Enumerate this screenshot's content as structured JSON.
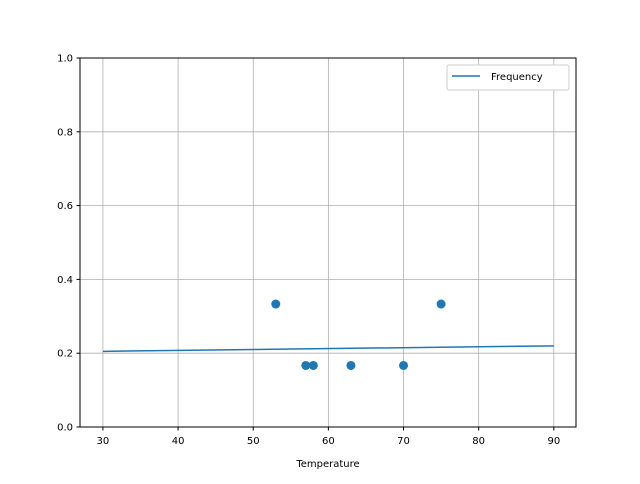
{
  "chart_data": {
    "type": "scatter",
    "title": "",
    "xlabel": "Temperature",
    "ylabel": "",
    "xlim": [
      26.95,
      92.95
    ],
    "ylim": [
      0,
      1
    ],
    "xticks": [
      30,
      40,
      50,
      60,
      70,
      80,
      90
    ],
    "yticks": [
      0.0,
      0.2,
      0.4,
      0.6,
      0.8,
      1.0
    ],
    "xtick_labels": [
      "30",
      "40",
      "50",
      "60",
      "70",
      "80",
      "90"
    ],
    "ytick_labels": [
      "0.0",
      "0.2",
      "0.4",
      "0.6",
      "0.8",
      "1.0"
    ],
    "grid": true,
    "legend_position": "top-right",
    "color": "#1f77b4",
    "series": [
      {
        "name": "Frequency",
        "kind": "line",
        "x": [
          30,
          90
        ],
        "y": [
          0.205,
          0.22
        ]
      },
      {
        "kind": "scatter",
        "x": [
          53,
          57,
          58,
          63,
          70,
          75
        ],
        "y": [
          0.3333,
          0.1667,
          0.1667,
          0.1667,
          0.1667,
          0.3333
        ]
      }
    ]
  }
}
